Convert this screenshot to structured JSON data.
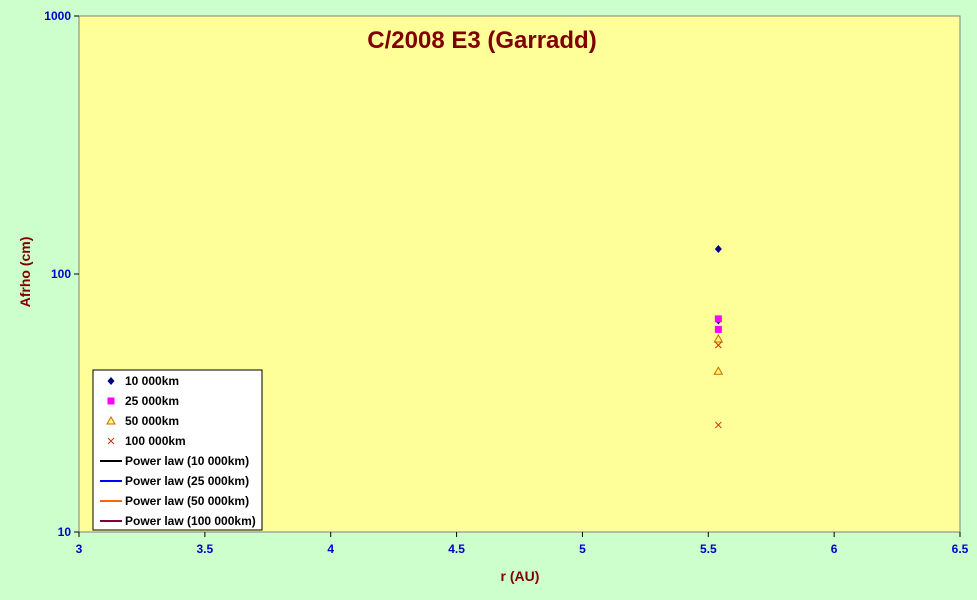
{
  "chart_data": {
    "type": "scatter",
    "title": "C/2008 E3 (Garradd)",
    "xlabel": "r (AU)",
    "ylabel": "Afrho (cm)",
    "xlim": [
      3,
      6.5
    ],
    "ylim": [
      10,
      1000
    ],
    "yscale": "log",
    "x_ticks": [
      "3",
      "3.5",
      "4",
      "4.5",
      "5",
      "5.5",
      "6",
      "6.5"
    ],
    "y_ticks": [
      "10",
      "100",
      "1000"
    ],
    "legend_position": "bottom-left",
    "grid": false,
    "colors": {
      "page_background": "#ccffcc",
      "plot_background": "#ffff99",
      "title": "#800000",
      "tick_labels": "#0000cc"
    },
    "series": [
      {
        "name": "10 000km",
        "marker": "diamond",
        "color": "#000080",
        "points": [
          {
            "x": 5.54,
            "y": 125
          },
          {
            "x": 5.54,
            "y": 66
          }
        ]
      },
      {
        "name": "25 000km",
        "marker": "square",
        "color": "#ff00ff",
        "points": [
          {
            "x": 5.54,
            "y": 67
          },
          {
            "x": 5.54,
            "y": 61
          }
        ]
      },
      {
        "name": "50 000km",
        "marker": "triangle",
        "color": "#cc6600",
        "points": [
          {
            "x": 5.54,
            "y": 56
          },
          {
            "x": 5.54,
            "y": 42
          }
        ]
      },
      {
        "name": "100 000km",
        "marker": "x",
        "color": "#cc3300",
        "points": [
          {
            "x": 5.54,
            "y": 53
          },
          {
            "x": 5.54,
            "y": 26
          }
        ]
      },
      {
        "name": "Power law (10 000km)",
        "marker": "line",
        "color": "#000000",
        "points": []
      },
      {
        "name": "Power law (25 000km)",
        "marker": "line",
        "color": "#0000ff",
        "points": []
      },
      {
        "name": "Power law (50 000km)",
        "marker": "line",
        "color": "#ff6600",
        "points": []
      },
      {
        "name": "Power law (100 000km)",
        "marker": "line",
        "color": "#800040",
        "points": []
      }
    ]
  }
}
